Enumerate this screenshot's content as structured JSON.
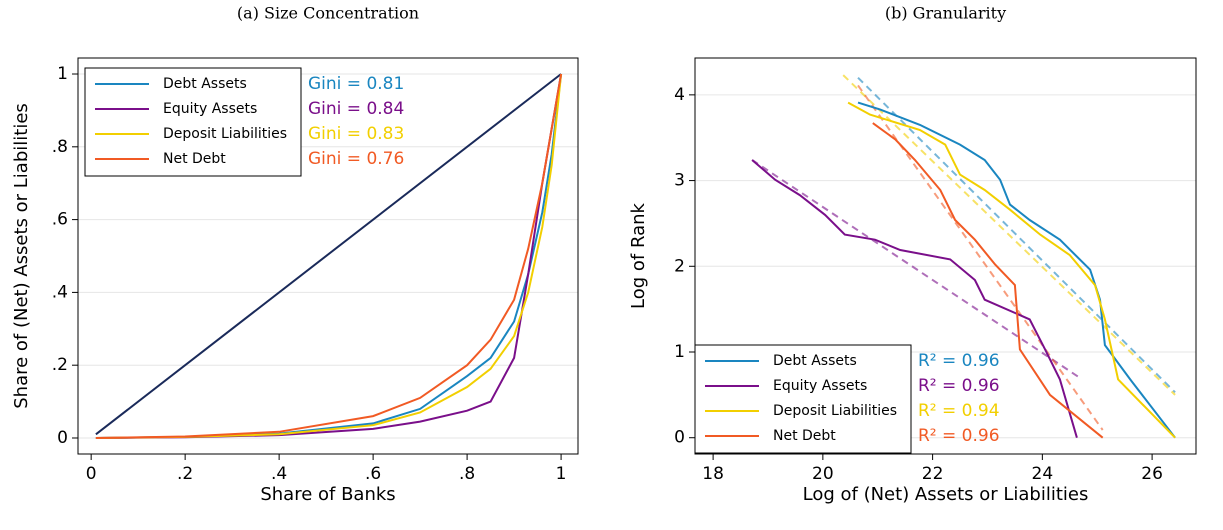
{
  "chart_data": [
    {
      "type": "line",
      "title": "(a)  Size Concentration",
      "xlabel": "Share of Banks",
      "ylabel": "Share of (Net) Assets or Liabilities",
      "x": [
        0.01,
        0.2,
        0.4,
        0.6,
        0.7,
        0.8,
        0.85,
        0.9,
        0.93,
        0.96,
        0.98,
        1
      ],
      "series": [
        {
          "name": "Debt Assets",
          "color": "#1a86c0",
          "annotation": "Gini = 0.81",
          "values": [
            0,
            0.003,
            0.012,
            0.04,
            0.08,
            0.17,
            0.22,
            0.32,
            0.45,
            0.62,
            0.78,
            1
          ]
        },
        {
          "name": "Equity Assets",
          "color": "#7a0f8a",
          "annotation": "Gini = 0.84",
          "values": [
            0,
            0.002,
            0.008,
            0.025,
            0.045,
            0.075,
            0.1,
            0.22,
            0.45,
            0.7,
            0.85,
            1
          ]
        },
        {
          "name": "Deposit Liabilities",
          "color": "#f2cf00",
          "annotation": "Gini = 0.83",
          "values": [
            0,
            0.003,
            0.01,
            0.035,
            0.07,
            0.14,
            0.19,
            0.28,
            0.4,
            0.58,
            0.75,
            1
          ]
        },
        {
          "name": "Net Debt",
          "color": "#f15a24",
          "annotation": "Gini = 0.76",
          "values": [
            0,
            0.004,
            0.017,
            0.06,
            0.11,
            0.2,
            0.27,
            0.38,
            0.52,
            0.7,
            0.85,
            1
          ]
        }
      ],
      "reference_line": {
        "color": "#1a2a5a",
        "x": [
          0.01,
          1
        ],
        "y": [
          0.01,
          1
        ]
      },
      "xlim": [
        -0.028,
        1.036
      ],
      "ylim": [
        -0.044,
        1.044
      ],
      "xticks": [
        0,
        {
          "value": 0.2,
          "label": ".2"
        },
        {
          "value": 0.4,
          "label": ".4"
        },
        {
          "value": 0.6,
          "label": ".6"
        },
        {
          "value": 0.8,
          "label": ".8"
        },
        1
      ],
      "yticks": [
        0,
        {
          "value": 0.2,
          "label": ".2"
        },
        {
          "value": 0.4,
          "label": ".4"
        },
        {
          "value": 0.6,
          "label": ".6"
        },
        {
          "value": 0.8,
          "label": ".8"
        },
        1
      ],
      "grid": true,
      "legend": "upper left"
    },
    {
      "type": "line",
      "title": "(b) Granularity",
      "xlabel": "Log of (Net) Assets or Liabilities",
      "ylabel": "Log of Rank",
      "series": [
        {
          "name": "Debt Assets",
          "color": "#1a86c0",
          "annotation": "R² = 0.96",
          "x": [
            20.64,
            21.04,
            21.77,
            22.5,
            22.95,
            23.23,
            23.41,
            23.77,
            24.32,
            24.87,
            25.05,
            25.14,
            25.6,
            26.42
          ],
          "values": [
            3.91,
            3.83,
            3.65,
            3.42,
            3.24,
            3.01,
            2.72,
            2.54,
            2.31,
            1.96,
            1.61,
            1.08,
            0.68,
            0
          ],
          "fit": {
            "x": [
              20.64,
              26.42
            ],
            "y": [
              4.2,
              0.53
            ]
          }
        },
        {
          "name": "Equity Assets",
          "color": "#7a0f8a",
          "annotation": "R² = 0.96",
          "x": [
            18.71,
            19.13,
            19.58,
            20.04,
            20.4,
            20.95,
            21.41,
            22.32,
            22.77,
            22.95,
            23.77,
            24.05,
            24.32,
            24.63
          ],
          "values": [
            3.24,
            3.01,
            2.83,
            2.6,
            2.37,
            2.31,
            2.19,
            2.08,
            1.84,
            1.61,
            1.38,
            1.03,
            0.68,
            0
          ],
          "fit": {
            "x": [
              18.71,
              24.68
            ],
            "y": [
              3.24,
              0.7
            ]
          }
        },
        {
          "name": "Deposit Liabilities",
          "color": "#f2cf00",
          "annotation": "R² = 0.94",
          "x": [
            20.46,
            20.86,
            21.77,
            22.23,
            22.5,
            22.95,
            23.41,
            23.96,
            24.5,
            24.96,
            25.14,
            25.38,
            26.42
          ],
          "values": [
            3.91,
            3.77,
            3.59,
            3.42,
            3.07,
            2.89,
            2.66,
            2.37,
            2.13,
            1.78,
            1.38,
            0.68,
            0
          ],
          "fit": {
            "x": [
              20.37,
              26.42
            ],
            "y": [
              4.23,
              0.5
            ]
          }
        },
        {
          "name": "Net Debt",
          "color": "#f15a24",
          "annotation": "R² = 0.96",
          "x": [
            20.91,
            21.32,
            21.68,
            22.14,
            22.41,
            22.77,
            23.14,
            23.5,
            23.59,
            24.14,
            25.1
          ],
          "values": [
            3.67,
            3.48,
            3.24,
            2.89,
            2.54,
            2.31,
            2.02,
            1.78,
            1.03,
            0.5,
            0
          ],
          "fit": {
            "x": [
              20.64,
              25.1
            ],
            "y": [
              4.11,
              0.09
            ]
          }
        }
      ],
      "xlim": [
        17.67,
        26.8
      ],
      "ylim": [
        -0.19,
        4.43
      ],
      "xticks": [
        18,
        20,
        22,
        24,
        26
      ],
      "yticks": [
        0,
        1,
        2,
        3,
        4
      ],
      "grid": true,
      "legend": "lower left"
    }
  ]
}
